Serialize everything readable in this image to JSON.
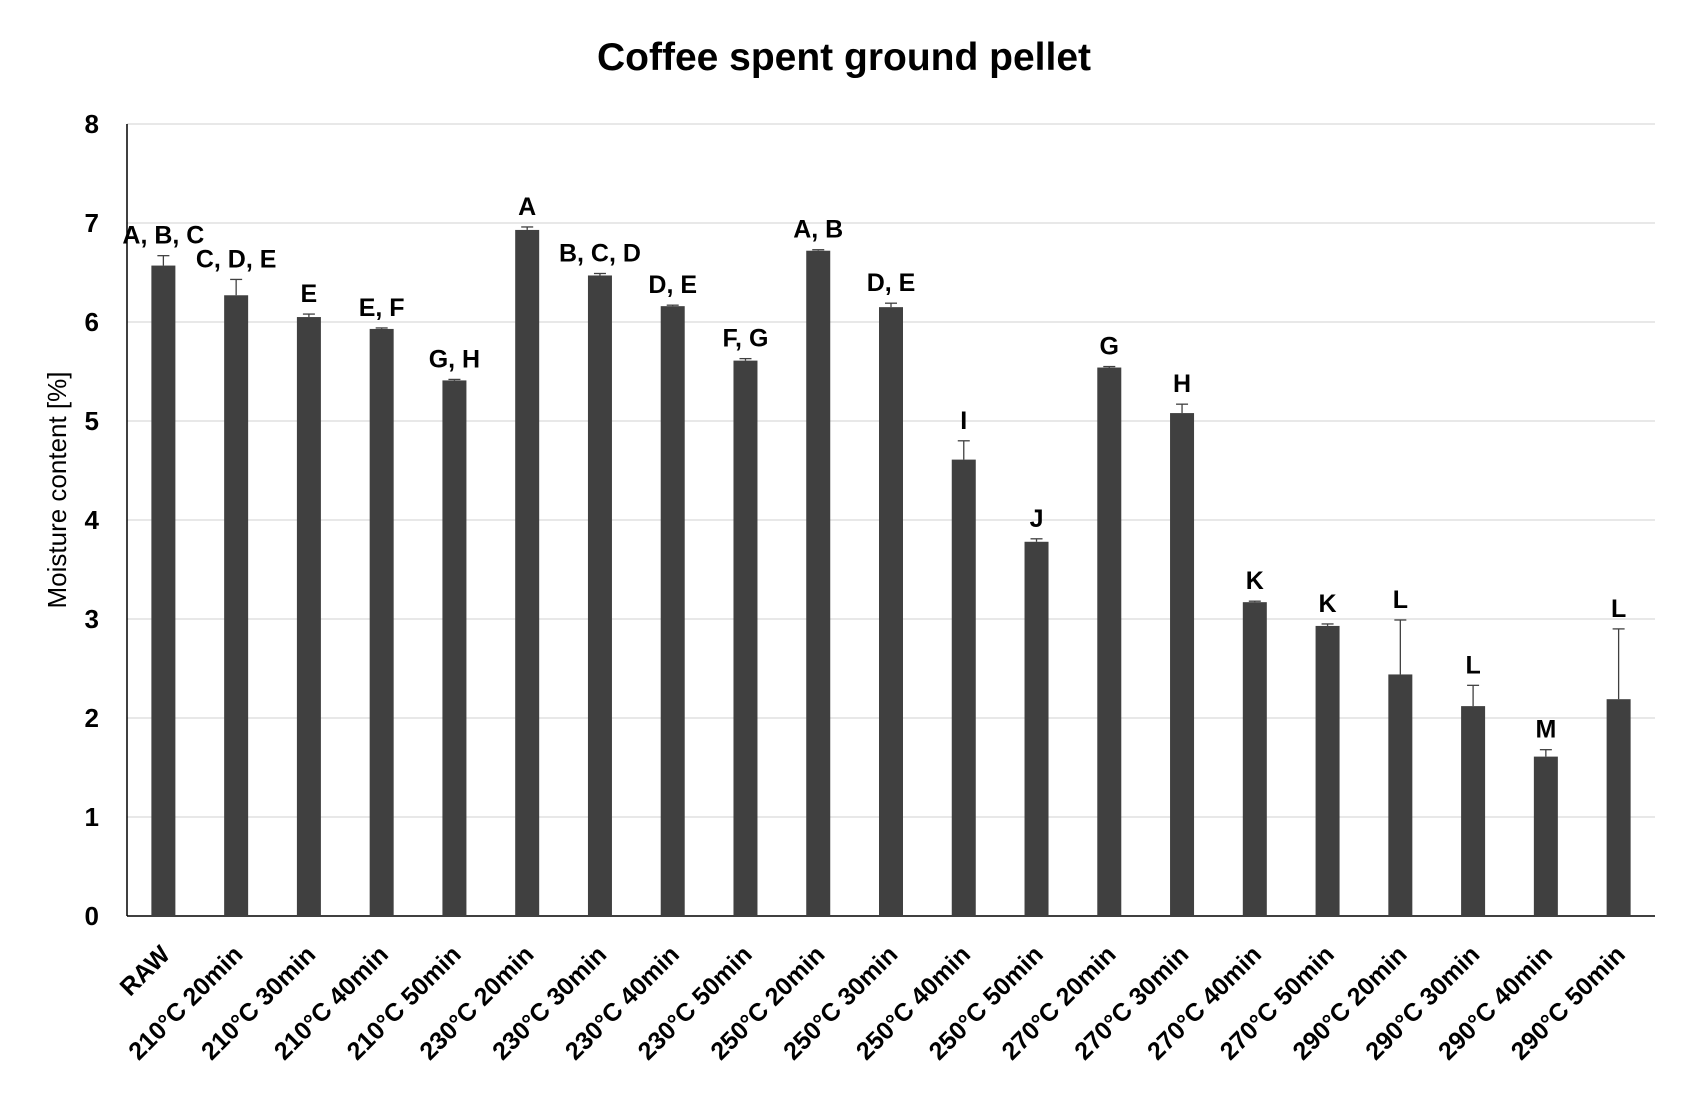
{
  "chart_data": {
    "type": "bar",
    "title": "Coffee spent ground pellet",
    "xlabel": "",
    "ylabel": "Moisture content [%]",
    "ylim": [
      0,
      8
    ],
    "yticks": [
      0,
      1,
      2,
      3,
      4,
      5,
      6,
      7,
      8
    ],
    "grid": true,
    "legend": "none",
    "bar_color": "#404040",
    "categories": [
      "RAW",
      "210°C 20min",
      "210°C 30min",
      "210°C 40min",
      "210°C 50min",
      "230°C 20min",
      "230°C 30min",
      "230°C 40min",
      "230°C 50min",
      "250°C 20min",
      "250°C 30min",
      "250°C 40min",
      "250°C 50min",
      "270°C 20min",
      "270°C 30min",
      "270°C 40min",
      "270°C 50min",
      "290°C 20min",
      "290°C 30min",
      "290°C 40min",
      "290°C 50min"
    ],
    "values": [
      6.57,
      6.27,
      6.05,
      5.93,
      5.41,
      6.93,
      6.47,
      6.16,
      5.61,
      6.72,
      6.15,
      4.61,
      3.78,
      5.54,
      5.08,
      3.17,
      2.93,
      2.44,
      2.12,
      1.61,
      2.19
    ],
    "errors": [
      0.1,
      0.16,
      0.03,
      0.01,
      0.01,
      0.03,
      0.02,
      0.01,
      0.02,
      0.01,
      0.04,
      0.19,
      0.03,
      0.01,
      0.09,
      0.01,
      0.02,
      0.55,
      0.21,
      0.07,
      0.71
    ],
    "annotations": [
      "A, B, C",
      "C, D, E",
      "E",
      "E, F",
      "G, H",
      "A",
      "B, C, D",
      "D, E",
      "F, G",
      "A, B",
      "D, E",
      "I",
      "J",
      "G",
      "H",
      "K",
      "K",
      "L",
      "L",
      "M",
      "L"
    ]
  }
}
